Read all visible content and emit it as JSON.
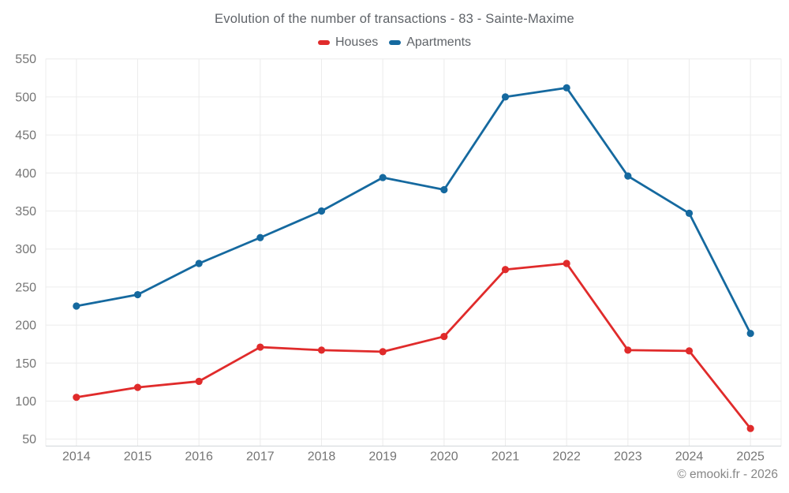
{
  "header": {
    "title": "Evolution of the number of transactions - 83 - Sainte-Maxime"
  },
  "footer": {
    "credit": "© emooki.fr - 2026"
  },
  "colors": {
    "houses": "#e02b2b",
    "apartments": "#15699f",
    "grid": "#ececec",
    "axis_line": "#d2d6da",
    "axis_text": "#757575",
    "title_text": "#5f6368"
  },
  "chart_data": {
    "type": "line",
    "title": "Evolution of the number of transactions - 83 - Sainte-Maxime",
    "categories": [
      "2014",
      "2015",
      "2016",
      "2017",
      "2018",
      "2019",
      "2020",
      "2021",
      "2022",
      "2023",
      "2024",
      "2025"
    ],
    "series": [
      {
        "name": "Houses",
        "color": "#e02b2b",
        "values": [
          105,
          118,
          126,
          171,
          167,
          165,
          185,
          273,
          281,
          167,
          166,
          64
        ]
      },
      {
        "name": "Apartments",
        "color": "#15699f",
        "values": [
          225,
          240,
          281,
          315,
          350,
          394,
          378,
          500,
          512,
          396,
          347,
          189
        ]
      }
    ],
    "xlabel": "",
    "ylabel": "",
    "ylim": [
      50,
      550
    ],
    "yticks": [
      550,
      500,
      450,
      400,
      350,
      300,
      250,
      200,
      150,
      100,
      50
    ],
    "grid": true,
    "legend_position": "top"
  }
}
